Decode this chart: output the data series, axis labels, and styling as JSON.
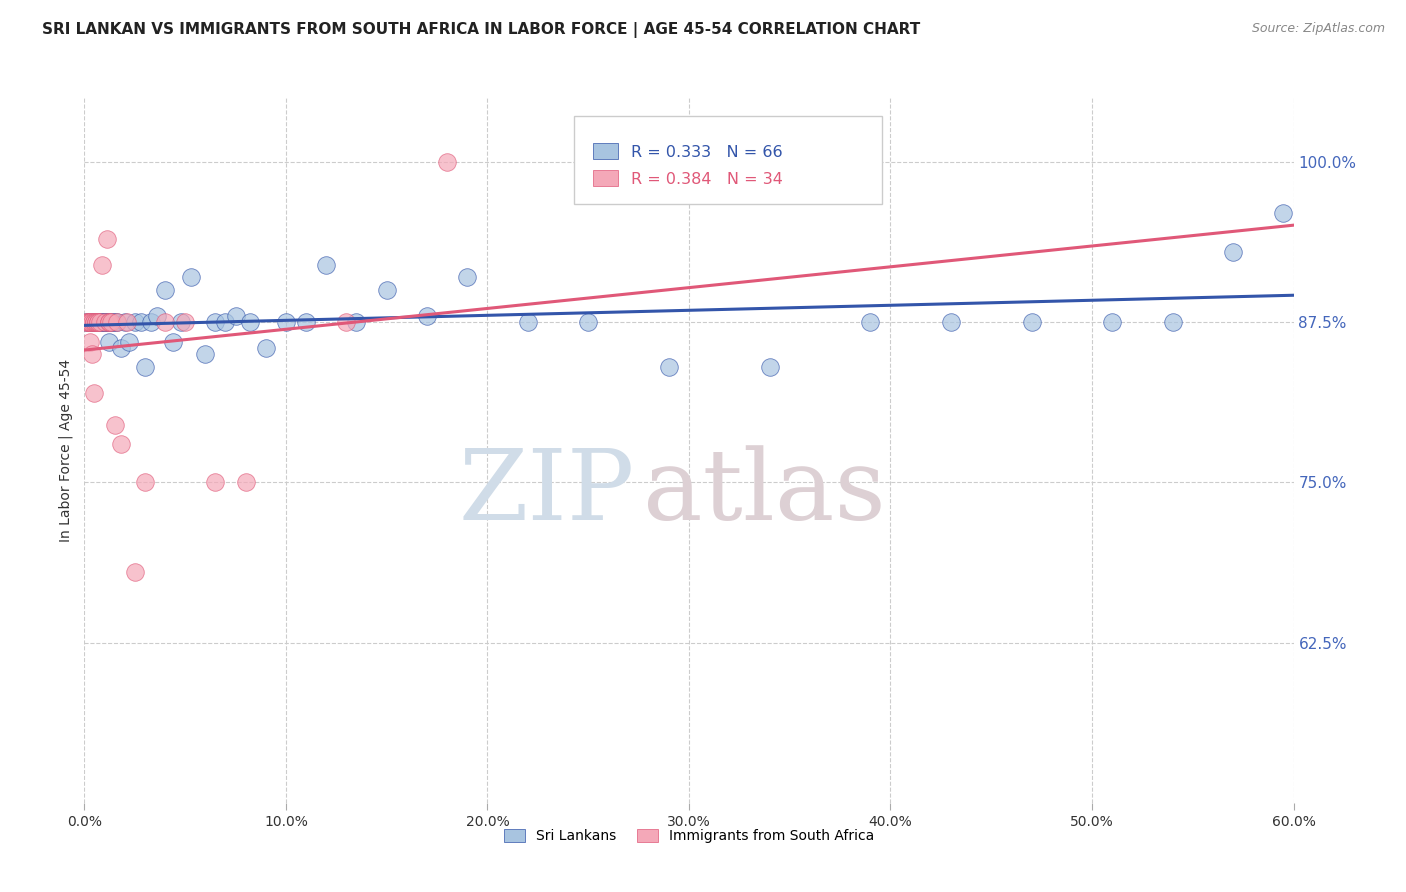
{
  "title": "SRI LANKAN VS IMMIGRANTS FROM SOUTH AFRICA IN LABOR FORCE | AGE 45-54 CORRELATION CHART",
  "source": "Source: ZipAtlas.com",
  "ylabel": "In Labor Force | Age 45-54",
  "xmin": 0.0,
  "xmax": 0.6,
  "ymin": 0.5,
  "ymax": 1.05,
  "xtick_labels": [
    "0.0%",
    "10.0%",
    "20.0%",
    "30.0%",
    "40.0%",
    "50.0%",
    "60.0%"
  ],
  "xtick_values": [
    0.0,
    0.1,
    0.2,
    0.3,
    0.4,
    0.5,
    0.6
  ],
  "ytick_labels_right": [
    "62.5%",
    "75.0%",
    "87.5%",
    "100.0%"
  ],
  "ytick_values_right": [
    0.625,
    0.75,
    0.875,
    1.0
  ],
  "blue_R": 0.333,
  "blue_N": 66,
  "pink_R": 0.384,
  "pink_N": 34,
  "blue_color": "#A8C4E0",
  "pink_color": "#F4A8B8",
  "blue_line_color": "#3355AA",
  "pink_line_color": "#E05878",
  "legend_label_blue": "Sri Lankans",
  "legend_label_pink": "Immigrants from South Africa",
  "watermark_zip_color": "#D0DCE8",
  "watermark_atlas_color": "#DDD0D4",
  "title_fontsize": 11,
  "source_fontsize": 9,
  "blue_scatter_x": [
    0.001,
    0.002,
    0.003,
    0.003,
    0.004,
    0.004,
    0.005,
    0.005,
    0.005,
    0.006,
    0.006,
    0.006,
    0.007,
    0.007,
    0.007,
    0.008,
    0.008,
    0.009,
    0.009,
    0.01,
    0.01,
    0.01,
    0.011,
    0.011,
    0.012,
    0.012,
    0.013,
    0.014,
    0.015,
    0.016,
    0.018,
    0.02,
    0.022,
    0.025,
    0.028,
    0.03,
    0.033,
    0.036,
    0.04,
    0.044,
    0.048,
    0.053,
    0.06,
    0.065,
    0.07,
    0.075,
    0.082,
    0.09,
    0.1,
    0.11,
    0.12,
    0.135,
    0.15,
    0.17,
    0.19,
    0.22,
    0.25,
    0.29,
    0.34,
    0.39,
    0.43,
    0.47,
    0.51,
    0.54,
    0.57,
    0.595
  ],
  "blue_scatter_y": [
    0.875,
    0.875,
    0.875,
    0.875,
    0.875,
    0.875,
    0.875,
    0.875,
    0.875,
    0.875,
    0.875,
    0.875,
    0.875,
    0.875,
    0.875,
    0.875,
    0.875,
    0.875,
    0.875,
    0.875,
    0.875,
    0.875,
    0.875,
    0.875,
    0.875,
    0.86,
    0.875,
    0.875,
    0.875,
    0.875,
    0.855,
    0.875,
    0.86,
    0.875,
    0.875,
    0.84,
    0.875,
    0.88,
    0.9,
    0.86,
    0.875,
    0.91,
    0.85,
    0.875,
    0.875,
    0.88,
    0.875,
    0.855,
    0.875,
    0.875,
    0.92,
    0.875,
    0.9,
    0.88,
    0.91,
    0.875,
    0.875,
    0.84,
    0.84,
    0.875,
    0.875,
    0.875,
    0.875,
    0.875,
    0.93,
    0.96
  ],
  "pink_scatter_x": [
    0.001,
    0.002,
    0.002,
    0.003,
    0.003,
    0.003,
    0.004,
    0.004,
    0.005,
    0.005,
    0.005,
    0.006,
    0.006,
    0.007,
    0.007,
    0.008,
    0.009,
    0.01,
    0.011,
    0.012,
    0.012,
    0.013,
    0.015,
    0.016,
    0.018,
    0.021,
    0.025,
    0.03,
    0.04,
    0.05,
    0.065,
    0.08,
    0.13,
    0.18
  ],
  "pink_scatter_y": [
    0.875,
    0.875,
    0.875,
    0.875,
    0.875,
    0.86,
    0.875,
    0.85,
    0.875,
    0.875,
    0.82,
    0.875,
    0.875,
    0.875,
    0.875,
    0.875,
    0.92,
    0.875,
    0.94,
    0.875,
    0.875,
    0.875,
    0.795,
    0.875,
    0.78,
    0.875,
    0.68,
    0.75,
    0.875,
    0.875,
    0.75,
    0.75,
    0.875,
    1.0
  ]
}
